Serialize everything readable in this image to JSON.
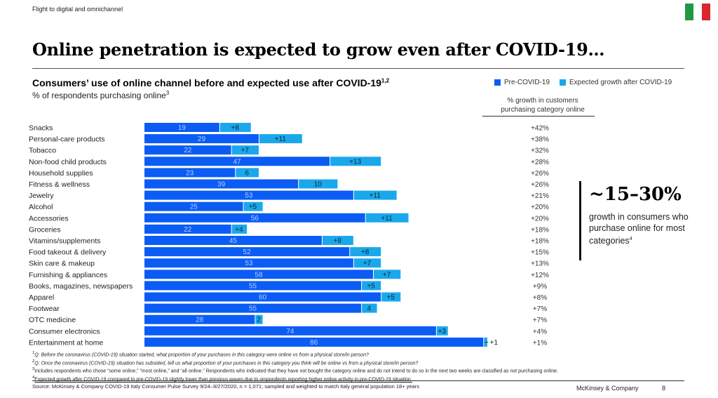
{
  "header": {
    "section": "Flight to digital and omnichannel",
    "title": "Online penetration is expected to grow even after COVID-19…",
    "flag": {
      "name": "Italy",
      "colors": [
        "#1e9a46",
        "#ffffff",
        "#d92630"
      ]
    }
  },
  "chart_header": {
    "title": "Consumers’ use of online channel before and expected use after COVID-19",
    "title_sup": "1,2",
    "subtitle": "% of respondents purchasing online",
    "subtitle_sup": "3",
    "growth_header": "% growth in customers purchasing category online"
  },
  "legend": [
    {
      "label": "Pre-COVID-19",
      "color": "#0a5cf5"
    },
    {
      "label": "Expected growth after COVID-19",
      "color": "#1aa8ec"
    }
  ],
  "chart_data": {
    "type": "bar",
    "stacked": true,
    "orientation": "horizontal",
    "title": "Consumers’ use of online channel before and expected use after COVID-19",
    "subtitle": "% of respondents purchasing online",
    "xlabel": "",
    "ylabel": "",
    "xlim": [
      0,
      90
    ],
    "grid": false,
    "legend_position": "top-right",
    "categories": [
      "Snacks",
      "Personal-care products",
      "Tobacco",
      "Non-food child products",
      "Household supplies",
      "Fitness & wellness",
      "Jewelry",
      "Alcohol",
      "Accessories",
      "Groceries",
      "Vitamins/supplements",
      "Food takeout & delivery",
      "Skin care & makeup",
      "Furnishing & appliances",
      "Books, magazines, newspapers",
      "Apparel",
      "Footwear",
      "OTC medicine",
      "Consumer electronics",
      "Entertainment at home"
    ],
    "series": [
      {
        "name": "Pre-COVID-19",
        "color": "#0a5cf5",
        "values": [
          19,
          29,
          22,
          47,
          23,
          39,
          53,
          25,
          56,
          22,
          45,
          52,
          53,
          58,
          55,
          60,
          55,
          28,
          74,
          86
        ]
      },
      {
        "name": "Expected growth after COVID-19",
        "color": "#1aa8ec",
        "values": [
          8,
          11,
          7,
          13,
          6,
          10,
          11,
          5,
          11,
          4,
          8,
          8,
          7,
          7,
          5,
          5,
          4,
          2,
          3,
          1
        ]
      }
    ],
    "growth_labels": [
      "+8",
      "+11",
      "+7",
      "+13",
      "6",
      "10",
      "+11",
      "+5",
      "+11",
      "+4",
      "+8",
      "+8",
      "+7",
      "+7",
      "+5",
      "+5",
      "4",
      "2",
      "+3",
      "+1"
    ],
    "growth_pct": [
      "+42%",
      "+38%",
      "+32%",
      "+28%",
      "+26%",
      "+26%",
      "+21%",
      "+20%",
      "+20%",
      "+18%",
      "+18%",
      "+15%",
      "+13%",
      "+12%",
      "+9%",
      "+8%",
      "+7%",
      "+7%",
      "+4%",
      "+1%"
    ]
  },
  "callout": {
    "value": "~15–30%",
    "text": "growth in consumers who purchase online for most categories",
    "sup": "4"
  },
  "footnotes": [
    {
      "num": "1",
      "text": "Q: Before the coronavirus (COVID-19) situation started, what proportion of your purchases in this category were online vs from a physical store/in person?"
    },
    {
      "num": "2",
      "text": "Q: Once the coronavirus (COVID-19) situation has subsided, tell us what proportion of your purchases in this category you think will be online vs from a physical store/in person?"
    },
    {
      "num": "3",
      "text": "Includes respondents who chose “some online,” “most online,” and “all online.” Respondents who indicated that they have not bought the category online and do not intend to do so in the next two weeks are classified as not purchasing online."
    },
    {
      "num": "4",
      "text": "Expected growth after COVID-19 compared to pre-COVID-19 slightly lower than previous waves due to respondents reporting higher online activity in pre-COVID-19 situation."
    }
  ],
  "footer": {
    "source": "Source: McKinsey & Company COVID-19 Italy Consumer Pulse Survey 9/24–9/27/2020, n = 1,071; sampled and weighted to match Italy general population 18+ years",
    "brand": "McKinsey & Company",
    "page": "8"
  }
}
